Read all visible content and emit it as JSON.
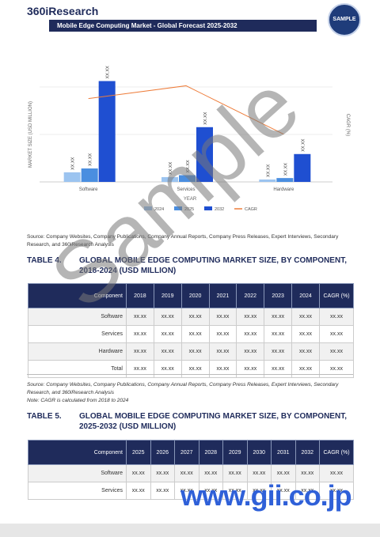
{
  "header": {
    "logo": "360iResearch",
    "title": "Mobile Edge Computing Market - Global Forecast 2025-2032",
    "badge": "SAMPLE"
  },
  "chart_data": {
    "type": "bar",
    "y_label": "MARKET SIZE (USD MILLION)",
    "y2_label": "CAGR (%)",
    "x_label": "YEAR",
    "categories": [
      "Software",
      "Services",
      "Hardware"
    ],
    "ylim": [
      0,
      140
    ],
    "y2lim": [
      0,
      20
    ],
    "series": [
      {
        "name": "2024",
        "color": "#9cc4f0",
        "values": [
          10,
          5,
          2.5
        ],
        "value_labels": [
          "XX.XX",
          "XX.XX",
          "XX.XX"
        ]
      },
      {
        "name": "2025",
        "color": "#4a8ee0",
        "values": [
          14,
          7,
          4
        ],
        "value_labels": [
          "XX.XX",
          "XX.XX",
          "XX.XX"
        ]
      },
      {
        "name": "2032",
        "color": "#1f4fd1",
        "values": [
          105,
          57,
          29
        ],
        "value_labels": [
          "XX.XX",
          "XX.XX",
          "XX.XX"
        ]
      },
      {
        "name": "CAGR",
        "color": "#ee7d3b",
        "type": "line",
        "axis": "y2",
        "values": [
          12.4,
          14.3,
          7.1
        ]
      }
    ]
  },
  "chart_source": "Source: Company Websites, Company Publications, Company Annual Reports, Company Press Releases, Expert Interviews, Secondary Research, and 360iResearch Analysis",
  "table4": {
    "number": "TABLE 4.",
    "title": "GLOBAL MOBILE EDGE COMPUTING MARKET SIZE, BY COMPONENT, 2018-2024 (USD MILLION)",
    "columns": [
      "Component",
      "2018",
      "2019",
      "2020",
      "2021",
      "2022",
      "2023",
      "2024",
      "CAGR (%)"
    ],
    "rows": [
      [
        "Software",
        "xx.xx",
        "xx.xx",
        "xx.xx",
        "xx.xx",
        "xx.xx",
        "xx.xx",
        "xx.xx",
        "xx.xx"
      ],
      [
        "Services",
        "xx.xx",
        "xx.xx",
        "xx.xx",
        "xx.xx",
        "xx.xx",
        "xx.xx",
        "xx.xx",
        "xx.xx"
      ],
      [
        "Hardware",
        "xx.xx",
        "xx.xx",
        "xx.xx",
        "xx.xx",
        "xx.xx",
        "xx.xx",
        "xx.xx",
        "xx.xx"
      ],
      [
        "Total",
        "xx.xx",
        "xx.xx",
        "xx.xx",
        "xx.xx",
        "xx.xx",
        "xx.xx",
        "xx.xx",
        "xx.xx"
      ]
    ]
  },
  "table4_source": "Source: Company Websites, Company Publications, Company Annual Reports, Company Press Releases, Expert Interviews, Secondary Research, and 360iResearch Analysis",
  "table4_note": "Note: CAGR is calculated from 2018 to 2024",
  "table5": {
    "number": "TABLE 5.",
    "title": "GLOBAL MOBILE EDGE COMPUTING MARKET SIZE, BY COMPONENT, 2025-2032 (USD MILLION)",
    "columns": [
      "Component",
      "2025",
      "2026",
      "2027",
      "2028",
      "2029",
      "2030",
      "2031",
      "2032",
      "CAGR (%)"
    ],
    "rows": [
      [
        "Software",
        "xx.xx",
        "xx.xx",
        "xx.xx",
        "xx.xx",
        "xx.xx",
        "xx.xx",
        "xx.xx",
        "xx.xx",
        "xx.xx"
      ],
      [
        "Services",
        "xx.xx",
        "xx.xx",
        "xx.xx",
        "xx.xx",
        "xx.xx",
        "xx.xx",
        "xx.xx",
        "xx.xx",
        "xx.xx"
      ]
    ]
  },
  "watermark": "Sample",
  "site": "www.gii.co.jp"
}
